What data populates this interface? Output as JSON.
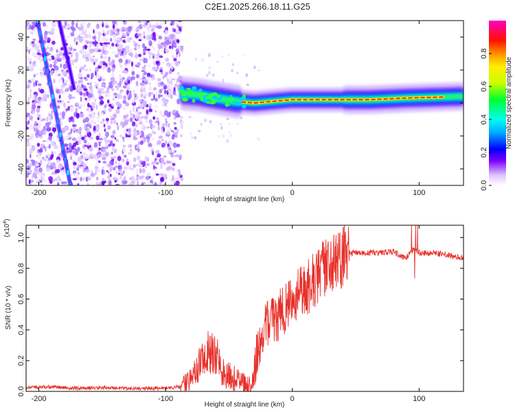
{
  "title": "C2E1.2025.266.18.11.G25",
  "chart_data": [
    {
      "type": "heatmap",
      "xlabel": "Height of straight line (km)",
      "ylabel": "Frequency (Hz)",
      "xlim": [
        -210,
        135
      ],
      "ylim": [
        -50,
        50
      ],
      "xticks": [
        -200,
        -100,
        0,
        100
      ],
      "yticks": [
        -40,
        -20,
        0,
        20,
        40
      ],
      "colorbar": {
        "label": "Normalized spectral amplitude",
        "range": [
          0.0,
          1.0
        ],
        "ticks": [
          0.0,
          0.2,
          0.4,
          0.6,
          0.8
        ],
        "tick_labels": [
          "0.0",
          "0.2",
          "0.4",
          "0.6",
          "0.8"
        ]
      },
      "features": {
        "noise_region_x": [
          -210,
          -87
        ],
        "signal_track": [
          {
            "x": -88,
            "y": 6
          },
          {
            "x": -75,
            "y": 5
          },
          {
            "x": -60,
            "y": 3
          },
          {
            "x": -45,
            "y": 1
          },
          {
            "x": -30,
            "y": 0
          },
          {
            "x": -15,
            "y": 1
          },
          {
            "x": 0,
            "y": 2
          },
          {
            "x": 30,
            "y": 2
          },
          {
            "x": 60,
            "y": 2
          },
          {
            "x": 90,
            "y": 3
          },
          {
            "x": 135,
            "y": 4
          }
        ],
        "diagonal_lines": [
          {
            "x1": -201,
            "y1": 50,
            "x2": -175,
            "y2": -50
          },
          {
            "x1": -184,
            "y1": 50,
            "x2": -172,
            "y2": 8
          }
        ]
      }
    },
    {
      "type": "line",
      "xlabel": "Height of straight line (km)",
      "ylabel": "SNR (10 * v/v)",
      "exponent_label": "(x10",
      "exponent_power": "4",
      "exponent_close": ")",
      "xlim": [
        -210,
        135
      ],
      "ylim": [
        0.0,
        1.08
      ],
      "xticks": [
        -200,
        -100,
        0,
        100
      ],
      "yticks": [
        0.0,
        0.2,
        0.4,
        0.6,
        0.8,
        1.0
      ],
      "ytick_labels": [
        "0.0",
        "0.2",
        "0.4",
        "0.6",
        "0.8",
        "1.0"
      ],
      "color": "#e8302a",
      "series": [
        {
          "name": "SNR",
          "x": [
            -210,
            -190,
            -170,
            -150,
            -130,
            -110,
            -95,
            -87,
            -82,
            -76,
            -70,
            -66,
            -62,
            -58,
            -55,
            -50,
            -46,
            -42,
            -38,
            -35,
            -32,
            -30,
            -28,
            -26,
            -24,
            -22,
            -20,
            -18,
            -16,
            -12,
            -8,
            -4,
            0,
            5,
            10,
            15,
            20,
            25,
            30,
            35,
            40,
            45,
            50,
            60,
            70,
            80,
            85,
            90,
            95,
            100,
            110,
            120,
            135
          ],
          "y": [
            0.025,
            0.03,
            0.02,
            0.025,
            0.02,
            0.02,
            0.025,
            0.03,
            0.06,
            0.13,
            0.22,
            0.25,
            0.26,
            0.2,
            0.12,
            0.1,
            0.09,
            0.07,
            0.05,
            0.04,
            0.03,
            0.12,
            0.25,
            0.3,
            0.38,
            0.4,
            0.42,
            0.47,
            0.5,
            0.48,
            0.52,
            0.55,
            0.58,
            0.62,
            0.66,
            0.7,
            0.75,
            0.79,
            0.83,
            0.86,
            0.88,
            0.9,
            0.9,
            0.9,
            0.9,
            0.91,
            0.88,
            0.87,
            0.92,
            0.9,
            0.9,
            0.89,
            0.87
          ]
        }
      ]
    }
  ]
}
